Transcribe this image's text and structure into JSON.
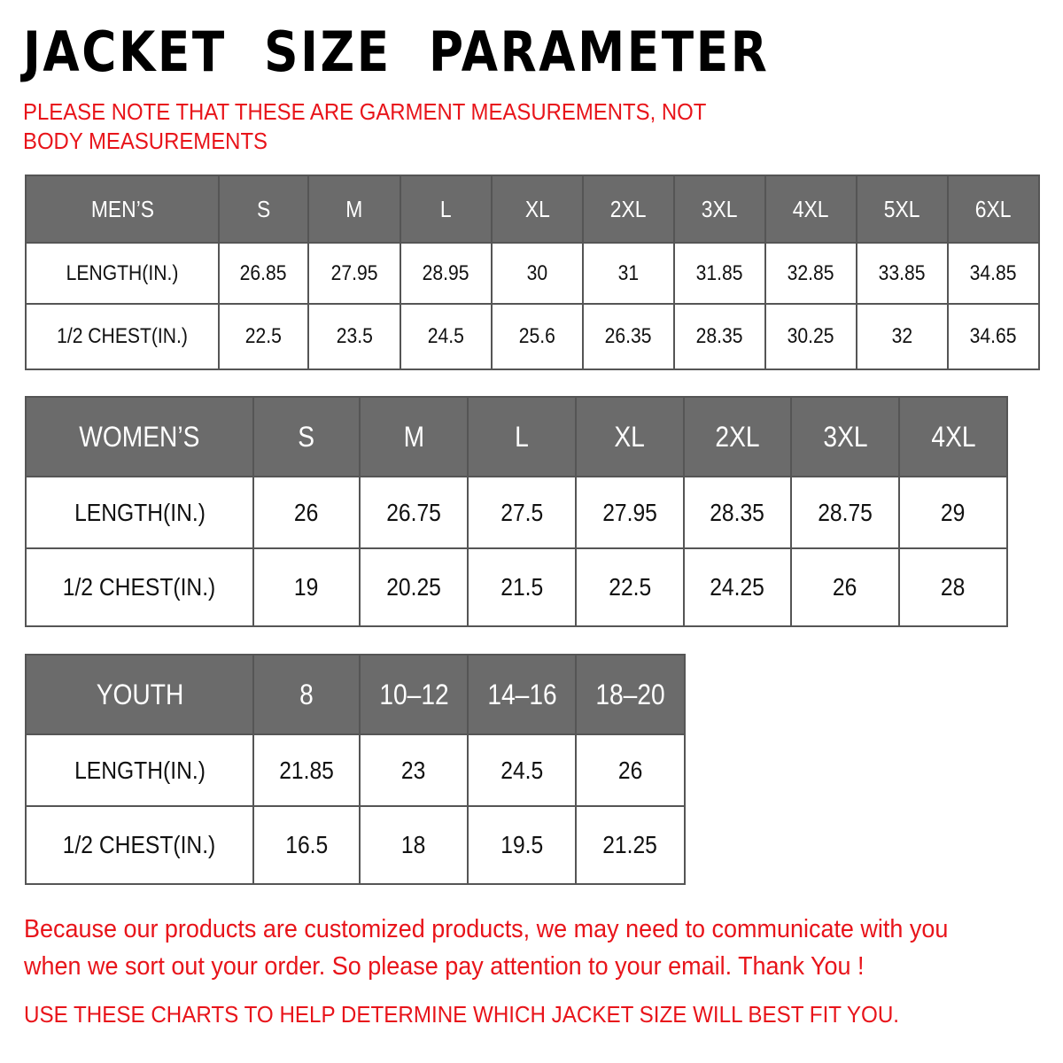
{
  "title": "JACKET  SIZE  PARAMETER",
  "note": "PLEASE NOTE THAT THESE ARE GARMENT MEASUREMENTS, NOT BODY MEASUREMENTS",
  "colors": {
    "header_bg": "#6b6b6b",
    "accent_red": "#e8141a"
  },
  "tables": [
    {
      "key": "men",
      "headers": [
        "MEN’S",
        "S",
        "M",
        "L",
        "XL",
        "2XL",
        "3XL",
        "4XL",
        "5XL",
        "6XL"
      ],
      "rows": [
        [
          "LENGTH(IN.)",
          "26.85",
          "27.95",
          "28.95",
          "30",
          "31",
          "31.85",
          "32.85",
          "33.85",
          "34.85"
        ],
        [
          "1/2 CHEST(IN.)",
          "22.5",
          "23.5",
          "24.5",
          "25.6",
          "26.35",
          "28.35",
          "30.25",
          "32",
          "34.65"
        ]
      ]
    },
    {
      "key": "women",
      "headers": [
        "WOMEN’S",
        "S",
        "M",
        "L",
        "XL",
        "2XL",
        "3XL",
        "4XL"
      ],
      "rows": [
        [
          "LENGTH(IN.)",
          "26",
          "26.75",
          "27.5",
          "27.95",
          "28.35",
          "28.75",
          "29"
        ],
        [
          "1/2 CHEST(IN.)",
          "19",
          "20.25",
          "21.5",
          "22.5",
          "24.25",
          "26",
          "28"
        ]
      ]
    },
    {
      "key": "youth",
      "headers": [
        "YOUTH",
        "8",
        "10–12",
        "14–16",
        "18–20"
      ],
      "rows": [
        [
          "LENGTH(IN.)",
          "21.85",
          "23",
          "24.5",
          "26"
        ],
        [
          "1/2 CHEST(IN.)",
          "16.5",
          "18",
          "19.5",
          "21.25"
        ]
      ]
    }
  ],
  "paragraph": "Because our products are customized products, we may need to communicate with you when we sort out your order. So please pay attention to your email. Thank You !",
  "footer": "USE THESE CHARTS TO HELP DETERMINE WHICH JACKET SIZE WILL BEST FIT YOU."
}
